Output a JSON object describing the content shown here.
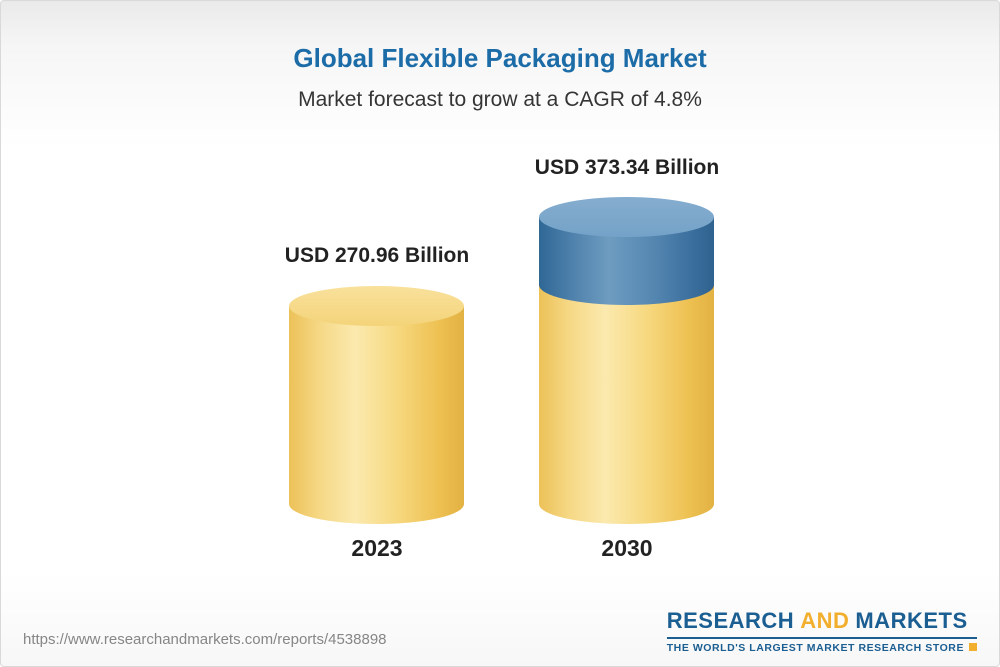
{
  "header": {
    "title": "Global Flexible Packaging Market",
    "subtitle": "Market forecast to grow at a CAGR of 4.8%"
  },
  "chart_data": {
    "type": "bar",
    "variant": "3d-cylinder",
    "categories": [
      "2023",
      "2030"
    ],
    "values": [
      270.96,
      373.34
    ],
    "value_labels": [
      "USD 270.96 Billion",
      "USD 373.34 Billion"
    ],
    "unit": "USD Billion",
    "cagr": "4.8%",
    "title": "Global Flexible Packaging Market",
    "subtitle": "Market forecast to grow at a CAGR of 4.8%",
    "xlabel": "",
    "ylabel": "",
    "legend": "none",
    "axes": "none",
    "colors": {
      "bar_base": "#F2CE68",
      "bar_growth": "#4A7CA8",
      "title_text": "#1C6CA8",
      "label_text": "#222222"
    }
  },
  "footer": {
    "url": "https://www.researchandmarkets.com/reports/4538898",
    "logo": {
      "research": "RESEARCH",
      "and": "AND",
      "markets": "MARKETS",
      "tagline": "THE WORLD'S LARGEST MARKET RESEARCH STORE"
    }
  }
}
